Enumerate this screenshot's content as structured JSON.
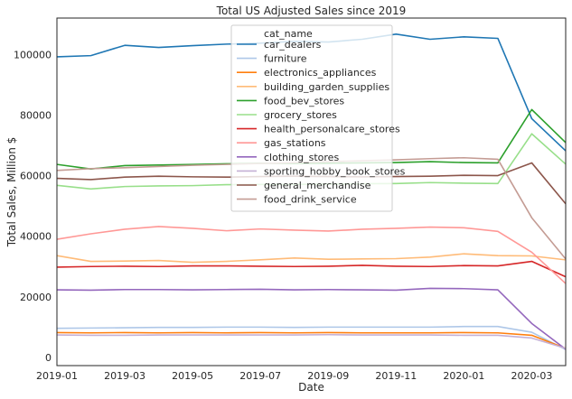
{
  "chart_data": {
    "type": "line",
    "title": "Total US Adjusted Sales since 2019",
    "xlabel": "Date",
    "ylabel": "Total Sales, Million $",
    "x": [
      "2019-01",
      "2019-02",
      "2019-03",
      "2019-04",
      "2019-05",
      "2019-06",
      "2019-07",
      "2019-08",
      "2019-09",
      "2019-10",
      "2019-11",
      "2019-12",
      "2020-01",
      "2020-02",
      "2020-03",
      "2020-04"
    ],
    "x_ticks": [
      "2019-01",
      "2019-03",
      "2019-05",
      "2019-07",
      "2019-09",
      "2019-11",
      "2020-01",
      "2020-03"
    ],
    "y_ticks": [
      0,
      20000,
      40000,
      60000,
      80000,
      100000
    ],
    "xlim": [
      "2019-01",
      "2020-04"
    ],
    "ylim": [
      -2700,
      112000
    ],
    "grid": false,
    "legend_title": "cat_name",
    "legend_placement": "upper-center",
    "series": [
      {
        "name": "car_dealers",
        "color": "#1f77b4",
        "values": [
          99200,
          99600,
          103000,
          102300,
          102900,
          103400,
          103700,
          104300,
          104100,
          105000,
          106700,
          105000,
          105800,
          105300,
          78800,
          68200
        ]
      },
      {
        "name": "furniture",
        "color": "#aec7e8",
        "values": [
          9600,
          9700,
          9800,
          9900,
          9900,
          10000,
          10000,
          9900,
          10000,
          10000,
          10000,
          10000,
          10200,
          10200,
          8300,
          2600
        ]
      },
      {
        "name": "electronics_appliances",
        "color": "#ff7f0e",
        "values": [
          8200,
          8100,
          8200,
          8100,
          8200,
          8100,
          8200,
          8100,
          8200,
          8100,
          8100,
          8100,
          8200,
          8100,
          7300,
          3000
        ]
      },
      {
        "name": "building_garden_supplies",
        "color": "#ffbb78",
        "values": [
          33600,
          31700,
          31800,
          32000,
          31400,
          31700,
          32200,
          32800,
          32400,
          32500,
          32600,
          33100,
          34200,
          33600,
          33500,
          32200
        ]
      },
      {
        "name": "food_bev_stores",
        "color": "#2ca02c",
        "values": [
          63700,
          62200,
          63300,
          63500,
          63700,
          63900,
          64100,
          64000,
          64100,
          64200,
          64300,
          64600,
          64300,
          64200,
          81800,
          70900
        ]
      },
      {
        "name": "grocery_stores",
        "color": "#98df8a",
        "values": [
          56800,
          55600,
          56400,
          56600,
          56700,
          57000,
          57100,
          57100,
          57200,
          57300,
          57400,
          57700,
          57500,
          57400,
          73800,
          63800
        ]
      },
      {
        "name": "health_personalcare_stores",
        "color": "#d62728",
        "values": [
          29800,
          30000,
          30100,
          30000,
          30200,
          30200,
          30100,
          30000,
          30100,
          30400,
          30100,
          30000,
          30300,
          30200,
          31700,
          26600
        ]
      },
      {
        "name": "gas_stations",
        "color": "#ff9896",
        "values": [
          39000,
          40800,
          42300,
          43200,
          42600,
          41800,
          42400,
          42000,
          41700,
          42300,
          42600,
          43000,
          42800,
          41600,
          34700,
          24400
        ]
      },
      {
        "name": "clothing_stores",
        "color": "#9467bd",
        "values": [
          22300,
          22200,
          22400,
          22400,
          22300,
          22400,
          22500,
          22300,
          22400,
          22300,
          22200,
          22800,
          22700,
          22300,
          11200,
          2700
        ]
      },
      {
        "name": "sporting_hobby_book_stores",
        "color": "#c5b0d5",
        "values": [
          7400,
          7300,
          7300,
          7400,
          7400,
          7400,
          7400,
          7400,
          7500,
          7400,
          7400,
          7400,
          7300,
          7300,
          6400,
          3000
        ]
      },
      {
        "name": "general_merchandise",
        "color": "#8c564b",
        "values": [
          59100,
          58700,
          59500,
          59800,
          59600,
          59500,
          59700,
          59800,
          59700,
          59600,
          59700,
          59800,
          60100,
          60000,
          64200,
          50700
        ]
      },
      {
        "name": "food_drink_service",
        "color": "#c49c94",
        "values": [
          61700,
          62300,
          62600,
          63000,
          63400,
          63700,
          64000,
          64300,
          64600,
          64900,
          65200,
          65600,
          65900,
          65400,
          46100,
          32500
        ]
      }
    ]
  }
}
